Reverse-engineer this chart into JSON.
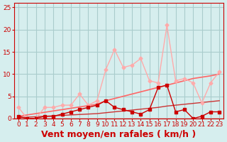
{
  "background_color": "#d6eeee",
  "grid_color": "#aacccc",
  "xlabel": "Vent moyen/en rafales ( km/h )",
  "xlabel_color": "#cc0000",
  "xlabel_fontsize": 9,
  "ylim": [
    0,
    26
  ],
  "yticks": [
    0,
    5,
    10,
    15,
    20,
    25
  ],
  "xlim": [
    -0.5,
    23.5
  ],
  "xticks": [
    0,
    1,
    2,
    3,
    4,
    5,
    6,
    7,
    8,
    9,
    10,
    11,
    12,
    13,
    14,
    15,
    16,
    17,
    18,
    19,
    20,
    21,
    22,
    23
  ],
  "x": [
    0,
    1,
    2,
    3,
    4,
    5,
    6,
    7,
    8,
    9,
    10,
    11,
    12,
    13,
    14,
    15,
    16,
    17,
    18,
    19,
    20,
    21,
    22,
    23
  ],
  "line_gust": [
    2.5,
    0,
    0,
    2.5,
    2.5,
    3,
    3,
    5.5,
    3,
    4,
    11,
    15.5,
    11.5,
    12,
    13.5,
    8.5,
    8,
    21,
    8.5,
    9,
    8,
    3.5,
    8,
    10.5
  ],
  "line_avg": [
    0.5,
    0,
    0,
    0.5,
    0.5,
    1,
    1.5,
    2,
    2.5,
    3,
    4,
    2.5,
    2,
    1.5,
    1,
    2,
    7,
    7.5,
    1.5,
    2,
    0,
    0.5,
    1.5,
    1.5
  ],
  "line_trend_gust": [
    0.5,
    0.8,
    1.1,
    1.4,
    1.7,
    2.0,
    2.3,
    2.6,
    2.9,
    3.2,
    4.0,
    4.5,
    5.0,
    5.5,
    6.0,
    6.5,
    7.0,
    7.5,
    8.0,
    8.5,
    9.0,
    9.3,
    9.6,
    10.0
  ],
  "line_trend_avg": [
    0.2,
    0.3,
    0.4,
    0.5,
    0.6,
    0.7,
    0.8,
    0.9,
    1.0,
    1.1,
    1.3,
    1.5,
    1.7,
    1.9,
    2.1,
    2.3,
    2.5,
    2.8,
    3.0,
    3.2,
    3.4,
    3.6,
    3.8,
    4.0
  ],
  "line_bottom": [
    0,
    0,
    0,
    0,
    0,
    0,
    0,
    0,
    0,
    0,
    0,
    0,
    0,
    0,
    0,
    0,
    0,
    0,
    0,
    0,
    0,
    0,
    0,
    0
  ],
  "color_gust": "#ffaaaa",
  "color_avg": "#cc0000",
  "color_trend": "#ff6666",
  "color_trend2": "#cc3333",
  "color_bottom": "#cc0000",
  "tick_color": "#cc0000",
  "tick_fontsize": 6.5
}
